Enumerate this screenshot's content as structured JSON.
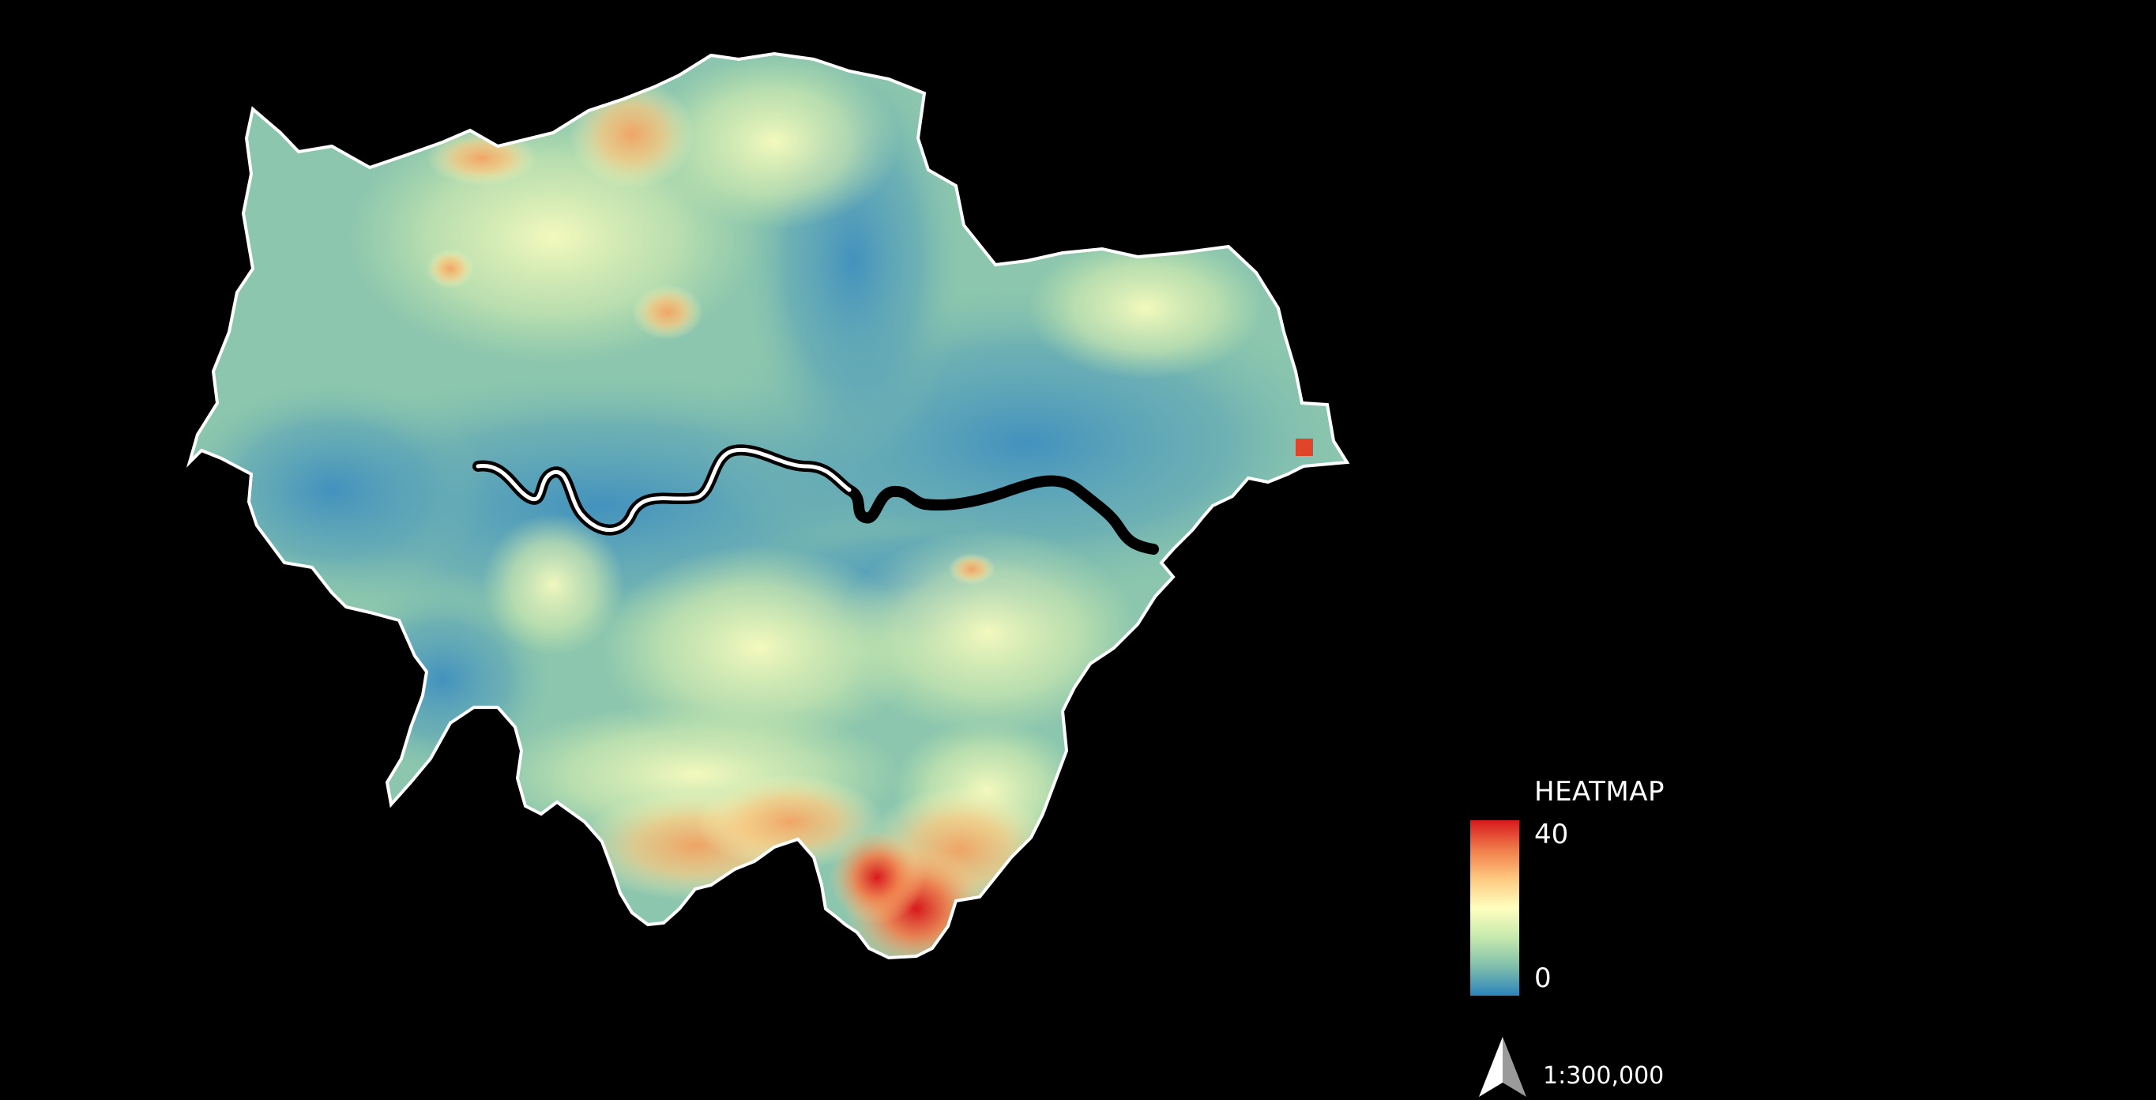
{
  "legend": {
    "title": "HEATMAP",
    "max_label": "40",
    "min_label": "0",
    "ramp_colors": [
      "#d7191c",
      "#f07c4a",
      "#fec980",
      "#ffffbf",
      "#c7e9ad",
      "#80bfac",
      "#2b83ba"
    ]
  },
  "scale": {
    "text": "1:300,000"
  },
  "map": {
    "background": "#000000",
    "boundary_color": "#ffffff",
    "river_color": "#000000",
    "low_color": "#2b83ba",
    "high_color": "#d7191c"
  },
  "icons": {
    "north_arrow": "north-arrow-icon"
  }
}
